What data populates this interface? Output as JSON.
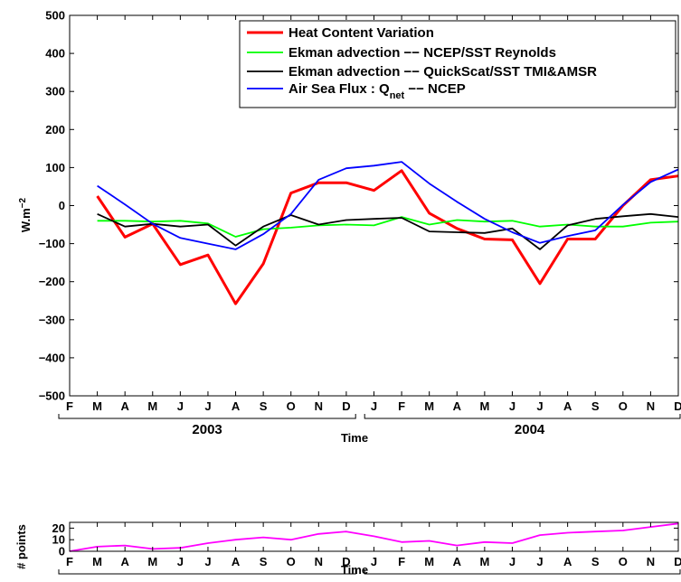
{
  "chart_data": [
    {
      "type": "line",
      "title": "",
      "xlabel": "Time",
      "ylabel": "W.m",
      "ylabel_exponent": "−2",
      "ylim": [
        -500,
        500
      ],
      "yticks": [
        500,
        400,
        300,
        200,
        100,
        0,
        -100,
        -200,
        -300,
        -400,
        -500
      ],
      "ytick_labels": [
        "500",
        "400",
        "300",
        "200",
        "100",
        "0",
        "−100",
        "−200",
        "−300",
        "−400",
        "−500"
      ],
      "grid": false,
      "legend_position": "top-right",
      "months": [
        "F",
        "M",
        "A",
        "M",
        "J",
        "J",
        "A",
        "S",
        "O",
        "N",
        "D",
        "J",
        "F",
        "M",
        "A",
        "M",
        "J",
        "J",
        "A",
        "S",
        "O",
        "N",
        "D"
      ],
      "years": [
        "2003",
        "2004"
      ],
      "series": [
        {
          "name": "Heat Content Variation",
          "color": "#ff0000",
          "values": [
            null,
            25,
            -83,
            -48,
            -155,
            -130,
            -258,
            -153,
            33,
            60,
            60,
            40,
            92,
            -20,
            -60,
            -88,
            -90,
            -205,
            -88,
            -88,
            0,
            68,
            78
          ]
        },
        {
          "name": "Ekman advection −− NCEP/SST Reynolds",
          "color": "#00ff00",
          "values": [
            null,
            -40,
            -40,
            -42,
            -40,
            -47,
            -82,
            -62,
            -58,
            -52,
            -50,
            -52,
            -30,
            -50,
            -38,
            -42,
            -40,
            -55,
            -50,
            -55,
            -55,
            -45,
            -42
          ]
        },
        {
          "name": "Ekman advection −− QuickScat/SST TMI&AMSR",
          "color": "#000000",
          "values": [
            null,
            -22,
            -55,
            -48,
            -55,
            -50,
            -105,
            -55,
            -25,
            -50,
            -38,
            -35,
            -32,
            -68,
            -70,
            -72,
            -60,
            -115,
            -52,
            -35,
            -28,
            -22,
            -30
          ]
        },
        {
          "name": "Air Sea Flux : Q",
          "name_subscript": "net",
          "name_suffix": " −− NCEP",
          "color": "#0000ff",
          "values": [
            null,
            52,
            3,
            -48,
            -85,
            -100,
            -115,
            -75,
            -22,
            68,
            98,
            105,
            115,
            58,
            10,
            -35,
            -70,
            -98,
            -80,
            -65,
            2,
            62,
            95
          ]
        }
      ]
    },
    {
      "type": "line",
      "title": "",
      "xlabel": "Time",
      "ylabel": "# points",
      "ylim": [
        0,
        25
      ],
      "yticks": [
        20,
        10,
        0
      ],
      "ytick_labels": [
        "20",
        "10",
        "0"
      ],
      "grid": false,
      "months": [
        "F",
        "M",
        "A",
        "M",
        "J",
        "J",
        "A",
        "S",
        "O",
        "N",
        "D",
        "J",
        "F",
        "M",
        "A",
        "M",
        "J",
        "J",
        "A",
        "S",
        "O",
        "N",
        "D"
      ],
      "years": [
        "2003",
        "2004"
      ],
      "series": [
        {
          "name": "",
          "color": "#ff00ff",
          "values": [
            0,
            4,
            5,
            2,
            3,
            7,
            10,
            12,
            10,
            15,
            17,
            13,
            8,
            9,
            5,
            8,
            7,
            14,
            16,
            17,
            18,
            21,
            24
          ]
        }
      ]
    }
  ]
}
